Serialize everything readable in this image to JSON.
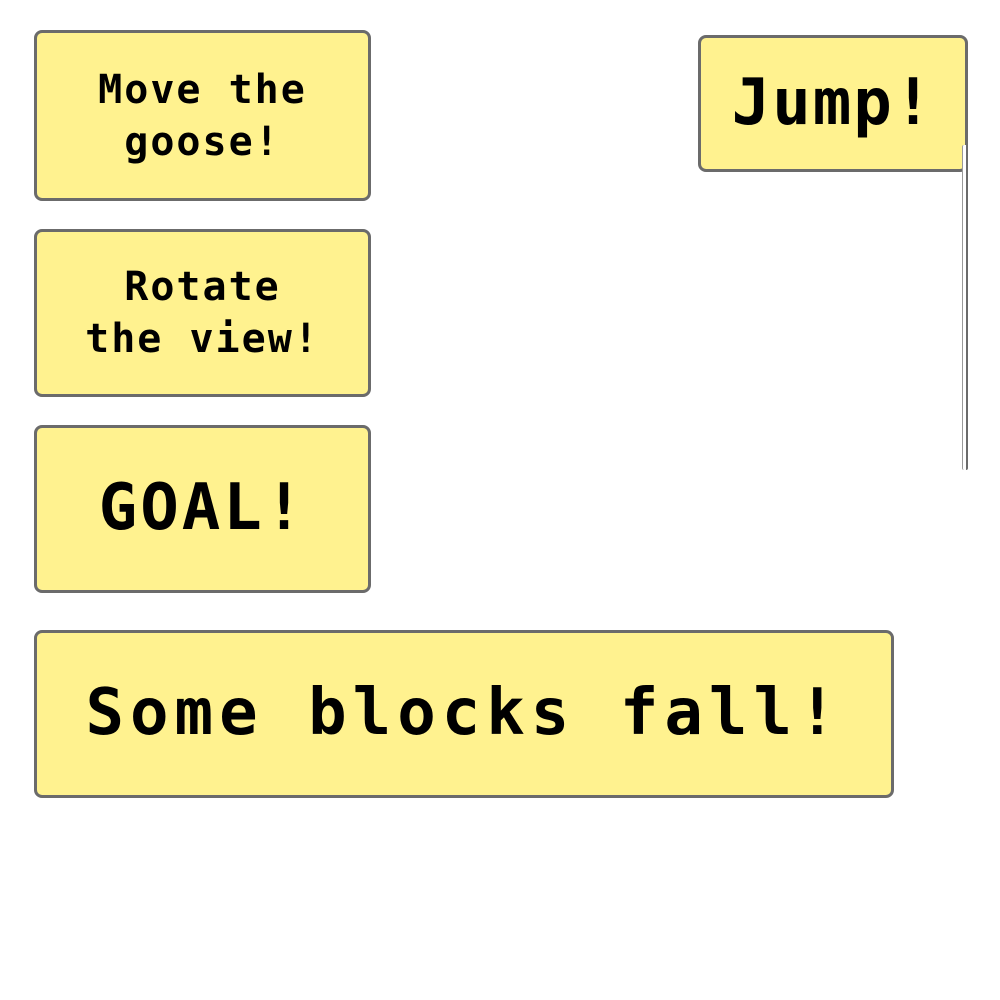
{
  "signs": {
    "move": "Move the\ngoose!",
    "rotate": "Rotate\nthe view!",
    "goal": "GOAL!",
    "fall": "Some blocks fall!",
    "jump": "Jump!"
  },
  "colors": {
    "sign_fill": "#fff28f",
    "sign_border": "#6b6b6b",
    "text": "#000000",
    "background": "#ffffff"
  }
}
